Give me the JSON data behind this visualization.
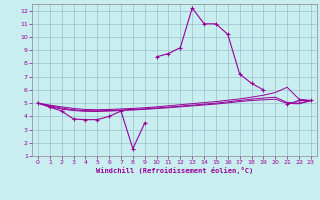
{
  "xlabel": "Windchill (Refroidissement éolien,°C)",
  "xlim": [
    -0.5,
    23.5
  ],
  "ylim": [
    1,
    12.5
  ],
  "xticks": [
    0,
    1,
    2,
    3,
    4,
    5,
    6,
    7,
    8,
    9,
    10,
    11,
    12,
    13,
    14,
    15,
    16,
    17,
    18,
    19,
    20,
    21,
    22,
    23
  ],
  "yticks": [
    1,
    2,
    3,
    4,
    5,
    6,
    7,
    8,
    9,
    10,
    11,
    12
  ],
  "bg_color": "#c8eef0",
  "grid_color": "#9bbfcc",
  "line_color": "#990099",
  "main_line": {
    "x": [
      0,
      1,
      2,
      3,
      4,
      5,
      6,
      7,
      8,
      9,
      10,
      11,
      12,
      13,
      14,
      15,
      16,
      17,
      18,
      19,
      21,
      22,
      23
    ],
    "y": [
      5.0,
      4.7,
      4.4,
      3.8,
      3.75,
      3.75,
      4.0,
      4.4,
      1.55,
      3.5,
      8.5,
      8.75,
      9.2,
      12.2,
      11.0,
      11.0,
      10.2,
      7.2,
      6.5,
      6.0,
      4.9,
      5.2,
      5.2
    ]
  },
  "flat_lines": [
    {
      "x": [
        0,
        1,
        2,
        3,
        4,
        5,
        6,
        7,
        8,
        9,
        10,
        11,
        12,
        13,
        14,
        15,
        16,
        17,
        18,
        19,
        20,
        21,
        22,
        23
      ],
      "y": [
        5.0,
        4.85,
        4.72,
        4.6,
        4.52,
        4.5,
        4.52,
        4.56,
        4.6,
        4.65,
        4.72,
        4.8,
        4.88,
        4.96,
        5.04,
        5.12,
        5.22,
        5.32,
        5.45,
        5.6,
        5.8,
        6.2,
        5.3,
        5.2
      ]
    },
    {
      "x": [
        0,
        1,
        2,
        3,
        4,
        5,
        6,
        7,
        8,
        9,
        10,
        11,
        12,
        13,
        14,
        15,
        16,
        17,
        18,
        19,
        20,
        21,
        22,
        23
      ],
      "y": [
        5.0,
        4.8,
        4.62,
        4.5,
        4.43,
        4.42,
        4.44,
        4.48,
        4.52,
        4.57,
        4.63,
        4.7,
        4.77,
        4.85,
        4.92,
        5.0,
        5.1,
        5.2,
        5.3,
        5.38,
        5.45,
        5.05,
        5.0,
        5.2
      ]
    },
    {
      "x": [
        0,
        1,
        2,
        3,
        4,
        5,
        6,
        7,
        8,
        9,
        10,
        11,
        12,
        13,
        14,
        15,
        16,
        17,
        18,
        19,
        20,
        21,
        22,
        23
      ],
      "y": [
        5.0,
        4.75,
        4.55,
        4.44,
        4.38,
        4.37,
        4.4,
        4.44,
        4.48,
        4.53,
        4.59,
        4.65,
        4.72,
        4.79,
        4.86,
        4.93,
        5.02,
        5.12,
        5.2,
        5.25,
        5.3,
        4.98,
        4.95,
        5.18
      ]
    }
  ]
}
